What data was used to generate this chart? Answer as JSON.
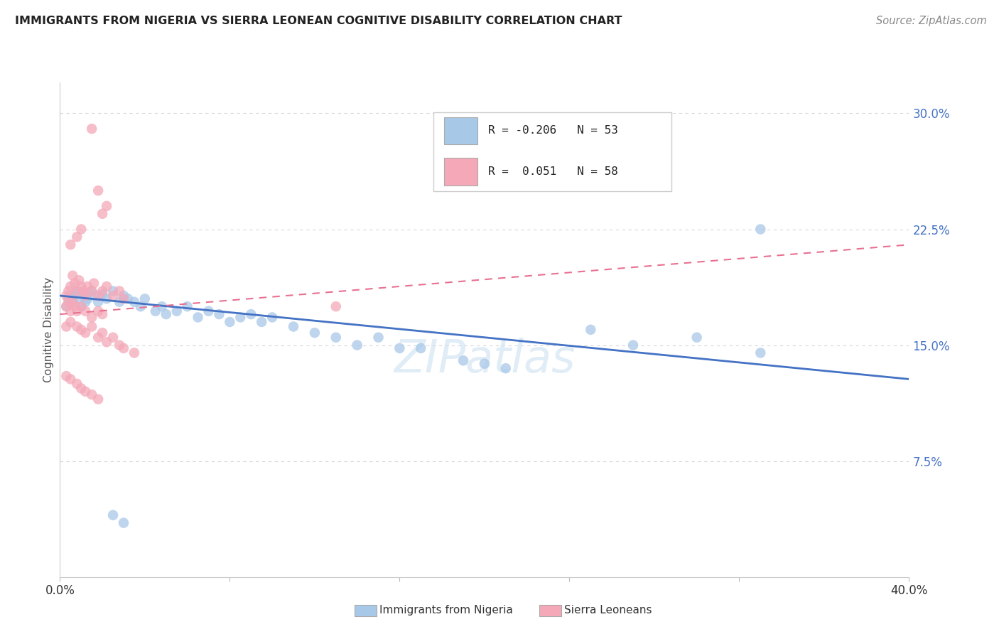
{
  "title": "IMMIGRANTS FROM NIGERIA VS SIERRA LEONEAN COGNITIVE DISABILITY CORRELATION CHART",
  "source": "Source: ZipAtlas.com",
  "ylabel": "Cognitive Disability",
  "ytick_labels": [
    "30.0%",
    "22.5%",
    "15.0%",
    "7.5%"
  ],
  "ytick_values": [
    0.3,
    0.225,
    0.15,
    0.075
  ],
  "xlim": [
    0.0,
    0.4
  ],
  "ylim": [
    0.0,
    0.32
  ],
  "legend_R_nigeria": "-0.206",
  "legend_N_nigeria": "53",
  "legend_R_sl": "0.051",
  "legend_N_sl": "58",
  "watermark": "ZIPatlas",
  "nigeria_x": [
    0.003,
    0.004,
    0.005,
    0.006,
    0.007,
    0.008,
    0.009,
    0.01,
    0.011,
    0.012,
    0.013,
    0.015,
    0.016,
    0.018,
    0.02,
    0.022,
    0.025,
    0.028,
    0.03,
    0.032,
    0.035,
    0.038,
    0.04,
    0.045,
    0.048,
    0.05,
    0.055,
    0.06,
    0.065,
    0.07,
    0.075,
    0.08,
    0.085,
    0.09,
    0.095,
    0.1,
    0.11,
    0.12,
    0.13,
    0.14,
    0.15,
    0.16,
    0.17,
    0.19,
    0.2,
    0.21,
    0.25,
    0.27,
    0.3,
    0.33,
    0.025,
    0.03,
    0.33
  ],
  "nigeria_y": [
    0.175,
    0.18,
    0.182,
    0.178,
    0.183,
    0.185,
    0.18,
    0.175,
    0.183,
    0.178,
    0.18,
    0.185,
    0.182,
    0.178,
    0.183,
    0.18,
    0.185,
    0.178,
    0.182,
    0.18,
    0.178,
    0.175,
    0.18,
    0.172,
    0.175,
    0.17,
    0.172,
    0.175,
    0.168,
    0.172,
    0.17,
    0.165,
    0.168,
    0.17,
    0.165,
    0.168,
    0.162,
    0.158,
    0.155,
    0.15,
    0.155,
    0.148,
    0.148,
    0.14,
    0.138,
    0.135,
    0.16,
    0.15,
    0.155,
    0.145,
    0.04,
    0.035,
    0.225
  ],
  "sierraleone_x": [
    0.003,
    0.004,
    0.005,
    0.006,
    0.007,
    0.008,
    0.009,
    0.01,
    0.011,
    0.012,
    0.013,
    0.015,
    0.016,
    0.018,
    0.02,
    0.022,
    0.025,
    0.028,
    0.03,
    0.003,
    0.004,
    0.005,
    0.006,
    0.007,
    0.008,
    0.01,
    0.012,
    0.015,
    0.018,
    0.02,
    0.003,
    0.005,
    0.008,
    0.01,
    0.012,
    0.015,
    0.018,
    0.02,
    0.022,
    0.025,
    0.028,
    0.03,
    0.035,
    0.003,
    0.005,
    0.008,
    0.01,
    0.012,
    0.015,
    0.018,
    0.005,
    0.008,
    0.01,
    0.02,
    0.022,
    0.015,
    0.018,
    0.13
  ],
  "sierraleone_y": [
    0.182,
    0.185,
    0.188,
    0.195,
    0.19,
    0.185,
    0.192,
    0.188,
    0.185,
    0.182,
    0.188,
    0.185,
    0.19,
    0.182,
    0.185,
    0.188,
    0.182,
    0.185,
    0.18,
    0.175,
    0.178,
    0.172,
    0.178,
    0.175,
    0.172,
    0.175,
    0.172,
    0.168,
    0.172,
    0.17,
    0.162,
    0.165,
    0.162,
    0.16,
    0.158,
    0.162,
    0.155,
    0.158,
    0.152,
    0.155,
    0.15,
    0.148,
    0.145,
    0.13,
    0.128,
    0.125,
    0.122,
    0.12,
    0.118,
    0.115,
    0.215,
    0.22,
    0.225,
    0.235,
    0.24,
    0.29,
    0.25,
    0.175
  ],
  "nigeria_color": "#a8c8e8",
  "sierraleone_color": "#f4a8b8",
  "nigeria_trend_color": "#4472c4",
  "sierraleone_trend_color": "#e87090",
  "nigeria_trend_y_at_0": 0.182,
  "nigeria_trend_y_at_40": 0.128,
  "sierraleone_trend_y_at_0": 0.17,
  "sierraleone_trend_y_at_40": 0.215,
  "background_color": "#ffffff",
  "grid_color": "#d8d8d8"
}
